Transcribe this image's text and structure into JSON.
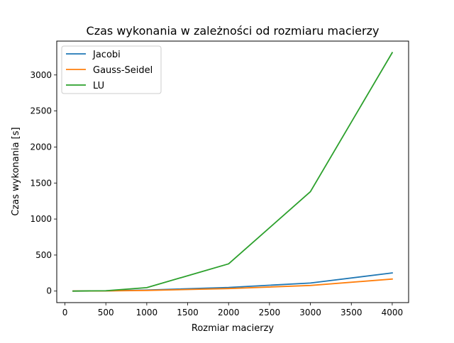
{
  "chart_data": {
    "type": "line",
    "title": "Czas wykonania w zależności od rozmiaru macierzy",
    "xlabel": "Rozmiar macierzy",
    "ylabel": "Czas wykonania [s]",
    "xlim": [
      -100,
      4200
    ],
    "ylim": [
      -160,
      3470
    ],
    "xticks": [
      0,
      500,
      1000,
      1500,
      2000,
      2500,
      3000,
      3500,
      4000
    ],
    "yticks": [
      0,
      500,
      1000,
      1500,
      2000,
      2500,
      3000
    ],
    "grid": false,
    "legend_position": "top-left",
    "x": [
      100,
      500,
      1000,
      2000,
      3000,
      4000
    ],
    "series": [
      {
        "name": "Jacobi",
        "color": "#1f77b4",
        "values": [
          0.5,
          3,
          14,
          50,
          112,
          252
        ]
      },
      {
        "name": "Gauss-Seidel",
        "color": "#ff7f0e",
        "values": [
          0.3,
          2,
          9,
          35,
          78,
          167
        ]
      },
      {
        "name": "LU",
        "color": "#2ca02c",
        "values": [
          0.2,
          5,
          48,
          378,
          1380,
          3310
        ]
      }
    ]
  }
}
